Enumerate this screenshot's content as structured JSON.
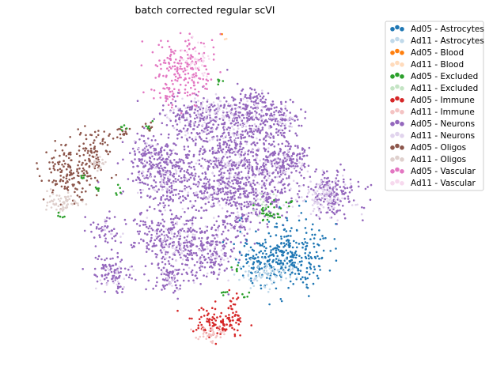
{
  "chart_data": {
    "type": "scatter",
    "title": "batch corrected regular scVI",
    "xlabel": "",
    "ylabel": "",
    "axes_visible": false,
    "grid": false,
    "legend_position": "right",
    "legend_entries": [
      {
        "label": "Ad05 - Astrocytes",
        "color": "#1f77b4",
        "faded": false
      },
      {
        "label": "Ad11 - Astrocytes",
        "color": "#1f77b4",
        "faded": true
      },
      {
        "label": "Ad05 - Blood",
        "color": "#ff7f0e",
        "faded": false
      },
      {
        "label": "Ad11 - Blood",
        "color": "#ff7f0e",
        "faded": true
      },
      {
        "label": "Ad05 - Excluded",
        "color": "#2ca02c",
        "faded": false
      },
      {
        "label": "Ad11 - Excluded",
        "color": "#2ca02c",
        "faded": true
      },
      {
        "label": "Ad05 - Immune",
        "color": "#d62728",
        "faded": false
      },
      {
        "label": "Ad11 - Immune",
        "color": "#d62728",
        "faded": true
      },
      {
        "label": "Ad05 - Neurons",
        "color": "#9467bd",
        "faded": false
      },
      {
        "label": "Ad11 - Neurons",
        "color": "#9467bd",
        "faded": true
      },
      {
        "label": "Ad05 - Oligos",
        "color": "#8c564b",
        "faded": false
      },
      {
        "label": "Ad11 - Oligos",
        "color": "#8c564b",
        "faded": true
      },
      {
        "label": "Ad05 - Vascular",
        "color": "#e377c2",
        "faded": false
      },
      {
        "label": "Ad11 - Vascular",
        "color": "#e377c2",
        "faded": true
      }
    ]
  }
}
